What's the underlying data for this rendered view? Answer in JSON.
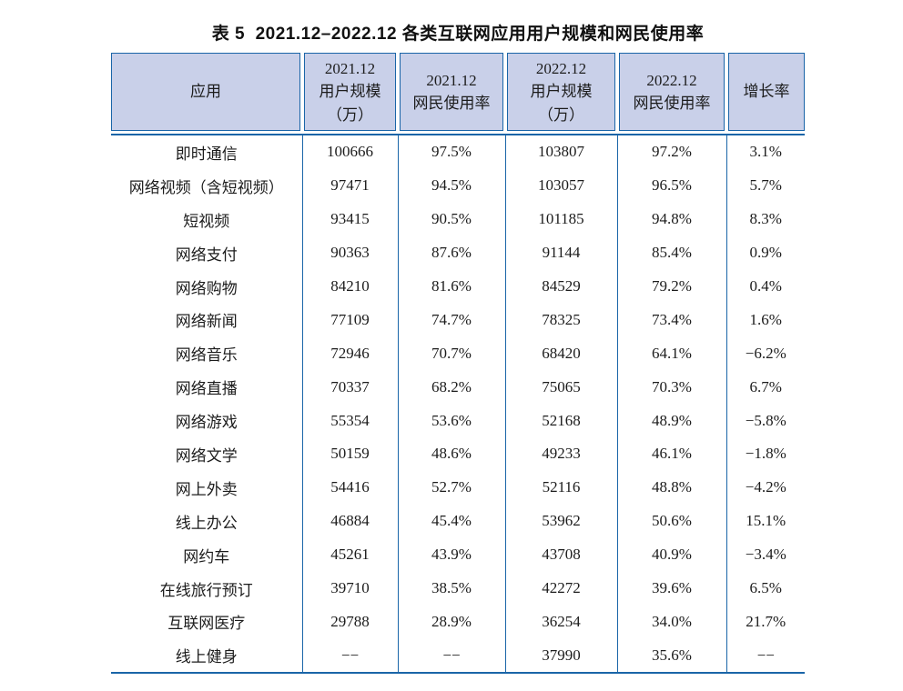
{
  "colors": {
    "header_bg": "#c9d0e9",
    "border_blue": "#1a65a8",
    "text": "#1c1c1c"
  },
  "title": "表 5  2021.12–2022.12 各类互联网应用用户规模和网民使用率",
  "table": {
    "columns": [
      {
        "lines": [
          "应用"
        ]
      },
      {
        "lines": [
          "2021.12",
          "用户规模",
          "（万）"
        ]
      },
      {
        "lines": [
          "2021.12",
          "网民使用率"
        ]
      },
      {
        "lines": [
          "2022.12",
          "用户规模",
          "（万）"
        ]
      },
      {
        "lines": [
          "2022.12",
          "网民使用率"
        ]
      },
      {
        "lines": [
          "增长率"
        ]
      }
    ],
    "rows": [
      [
        "即时通信",
        "100666",
        "97.5%",
        "103807",
        "97.2%",
        "3.1%"
      ],
      [
        "网络视频（含短视频）",
        "97471",
        "94.5%",
        "103057",
        "96.5%",
        "5.7%"
      ],
      [
        "短视频",
        "93415",
        "90.5%",
        "101185",
        "94.8%",
        "8.3%"
      ],
      [
        "网络支付",
        "90363",
        "87.6%",
        "91144",
        "85.4%",
        "0.9%"
      ],
      [
        "网络购物",
        "84210",
        "81.6%",
        "84529",
        "79.2%",
        "0.4%"
      ],
      [
        "网络新闻",
        "77109",
        "74.7%",
        "78325",
        "73.4%",
        "1.6%"
      ],
      [
        "网络音乐",
        "72946",
        "70.7%",
        "68420",
        "64.1%",
        "−6.2%"
      ],
      [
        "网络直播",
        "70337",
        "68.2%",
        "75065",
        "70.3%",
        "6.7%"
      ],
      [
        "网络游戏",
        "55354",
        "53.6%",
        "52168",
        "48.9%",
        "−5.8%"
      ],
      [
        "网络文学",
        "50159",
        "48.6%",
        "49233",
        "46.1%",
        "−1.8%"
      ],
      [
        "网上外卖",
        "54416",
        "52.7%",
        "52116",
        "48.8%",
        "−4.2%"
      ],
      [
        "线上办公",
        "46884",
        "45.4%",
        "53962",
        "50.6%",
        "15.1%"
      ],
      [
        "网约车",
        "45261",
        "43.9%",
        "43708",
        "40.9%",
        "−3.4%"
      ],
      [
        "在线旅行预订",
        "39710",
        "38.5%",
        "42272",
        "39.6%",
        "6.5%"
      ],
      [
        "互联网医疗",
        "29788",
        "28.9%",
        "36254",
        "34.0%",
        "21.7%"
      ],
      [
        "线上健身",
        "−−",
        "−−",
        "37990",
        "35.6%",
        "−−"
      ]
    ]
  }
}
